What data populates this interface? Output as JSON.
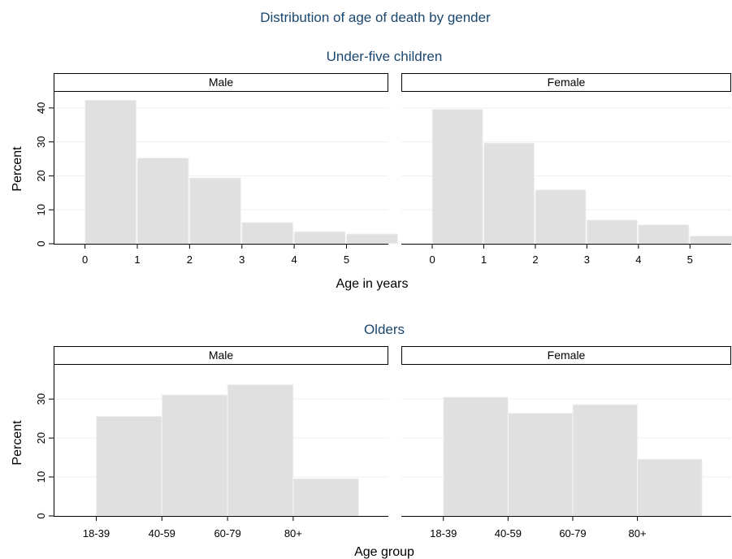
{
  "title": "Distribution of age of death by gender",
  "colors": {
    "bar_fill": "#e0e0e0",
    "bar_edge": "#f4f4f4",
    "grid": "#eaf2f3",
    "title": "#1a476f",
    "axis": "#000000"
  },
  "chart_data": [
    {
      "type": "bar",
      "section_title": "Under-five children",
      "xlabel": "Age in years",
      "ylabel": "Percent",
      "ylim": [
        0,
        45
      ],
      "yticks": [
        0,
        10,
        20,
        30,
        40
      ],
      "xlim": [
        -0.6,
        5.8
      ],
      "xticks": [
        0,
        1,
        2,
        3,
        4,
        5
      ],
      "bin_width": 0.98,
      "grid": true,
      "series": [
        {
          "name": "Male",
          "bin_starts": [
            0,
            1,
            2,
            3,
            4,
            5
          ],
          "values": [
            42.3,
            25.3,
            19.4,
            6.3,
            3.6,
            2.9
          ]
        },
        {
          "name": "Female",
          "bin_starts": [
            0,
            1,
            2,
            3,
            4,
            5
          ],
          "values": [
            39.6,
            29.7,
            15.9,
            7.0,
            5.6,
            2.3
          ]
        }
      ]
    },
    {
      "type": "bar",
      "section_title": "Olders",
      "xlabel": "Age group",
      "ylabel": "Percent",
      "ylim": [
        0,
        39
      ],
      "yticks": [
        0,
        10,
        20,
        30
      ],
      "xlim": [
        -1.15,
        3.95
      ],
      "categories": [
        "18-39",
        "40-59",
        "60-79",
        "80+"
      ],
      "bar_width": 1.0,
      "grid": true,
      "series": [
        {
          "name": "Male",
          "values": [
            25.6,
            31.1,
            33.7,
            9.6
          ]
        },
        {
          "name": "Female",
          "values": [
            30.5,
            26.4,
            28.6,
            14.6
          ]
        }
      ]
    }
  ]
}
